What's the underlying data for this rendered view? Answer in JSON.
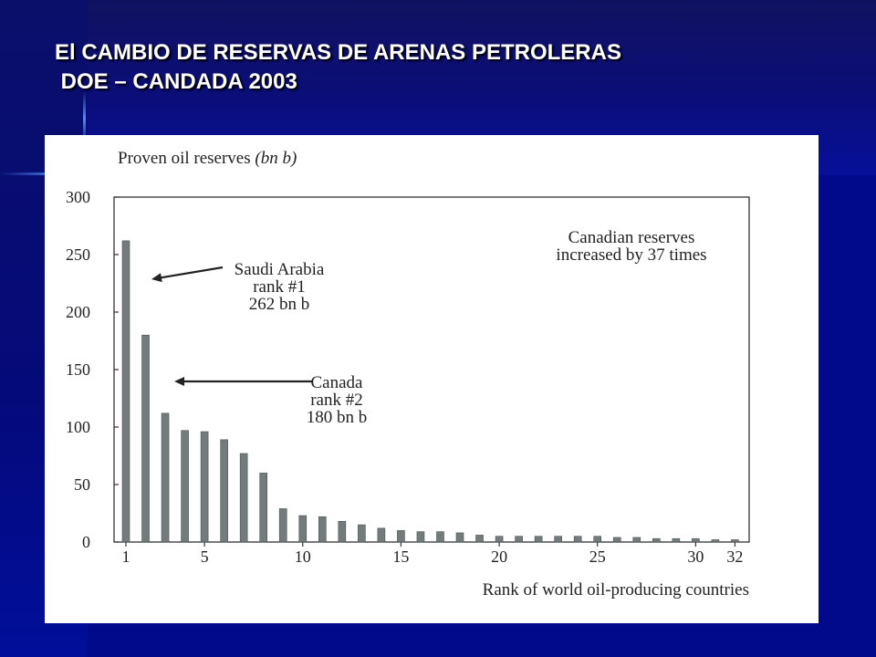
{
  "slide": {
    "title_line1": "El CAMBIO DE RESERVAS DE ARENAS PETROLERAS",
    "title_line2": " DOE – CANDADA 2003"
  },
  "colors": {
    "background": "#000a8a",
    "bar": "#737b7d",
    "axis": "#333333"
  },
  "chart_data": {
    "type": "bar",
    "ylabel": "Proven oil reserves",
    "ylabel_unit": "(bn b)",
    "xlabel": "Rank of world oil-producing countries",
    "ylim": [
      0,
      300
    ],
    "yticks": [
      0,
      50,
      100,
      150,
      200,
      250,
      300
    ],
    "xticks": [
      1,
      5,
      10,
      15,
      20,
      25,
      30,
      32
    ],
    "categories": [
      1,
      2,
      3,
      4,
      5,
      6,
      7,
      8,
      9,
      10,
      11,
      12,
      13,
      14,
      15,
      16,
      17,
      18,
      19,
      20,
      21,
      22,
      23,
      24,
      25,
      26,
      27,
      28,
      29,
      30,
      31,
      32
    ],
    "values": [
      262,
      180,
      112,
      97,
      96,
      89,
      77,
      60,
      29,
      23,
      22,
      18,
      15,
      12,
      10,
      9,
      9,
      8,
      6,
      5,
      5,
      5,
      5,
      5,
      5,
      4,
      4,
      3,
      3,
      3,
      2,
      2
    ],
    "annotations": [
      {
        "lines": [
          "Saudi Arabia",
          "rank #1",
          "262 bn b"
        ],
        "arrow": true
      },
      {
        "lines": [
          "Canada",
          "rank #2",
          "180 bn b"
        ],
        "arrow": true
      },
      {
        "lines": [
          "Canadian reserves",
          "increased by 37 times"
        ],
        "arrow": false
      }
    ]
  }
}
